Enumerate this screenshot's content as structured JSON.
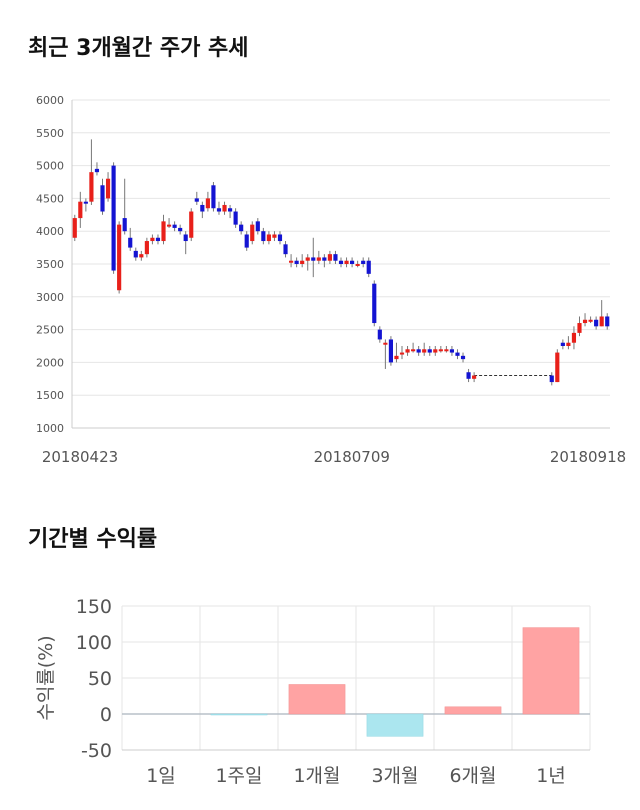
{
  "section1": {
    "title": "최근 3개월간 주가 추세"
  },
  "section2": {
    "title": "기간별 수익률"
  },
  "colors": {
    "up": "#e8201a",
    "down": "#1414d2",
    "gain_bar": "#ffa3a3",
    "loss_bar": "#abe6ef"
  },
  "chart_data": [
    {
      "type": "candlestick",
      "title": "최근 3개월간 주가 추세",
      "ylim": [
        1000,
        6000
      ],
      "yticks": [
        1000,
        1500,
        2000,
        2500,
        3000,
        3500,
        4000,
        4500,
        5000,
        5500,
        6000
      ],
      "xticks": [
        "20180423",
        "20180709",
        "20180918"
      ],
      "grid": true,
      "candles": [
        [
          3900,
          4200,
          4250,
          3850
        ],
        [
          4200,
          4450,
          4600,
          4050
        ],
        [
          4450,
          4420,
          4500,
          4300
        ],
        [
          4450,
          4900,
          5400,
          4400
        ],
        [
          4950,
          4900,
          5050,
          4850
        ],
        [
          4700,
          4300,
          4800,
          4250
        ],
        [
          4500,
          4800,
          4900,
          4450
        ],
        [
          5000,
          3400,
          5050,
          3350
        ],
        [
          3100,
          4100,
          4150,
          3050
        ],
        [
          4200,
          4000,
          4800,
          3950
        ],
        [
          3900,
          3750,
          4050,
          3700
        ],
        [
          3700,
          3600,
          3750,
          3550
        ],
        [
          3600,
          3650,
          3700,
          3550
        ],
        [
          3650,
          3850,
          3900,
          3600
        ],
        [
          3850,
          3900,
          3950,
          3800
        ],
        [
          3900,
          3850,
          3950,
          3800
        ],
        [
          3850,
          4150,
          4250,
          3800
        ],
        [
          4100,
          4100,
          4200,
          4050
        ],
        [
          4100,
          4050,
          4150,
          4000
        ],
        [
          4050,
          4000,
          4100,
          3950
        ],
        [
          3950,
          3850,
          4000,
          3650
        ],
        [
          3900,
          4300,
          4350,
          3850
        ],
        [
          4500,
          4450,
          4600,
          4400
        ],
        [
          4400,
          4300,
          4450,
          4200
        ],
        [
          4350,
          4500,
          4600,
          4300
        ],
        [
          4700,
          4350,
          4750,
          4300
        ],
        [
          4350,
          4300,
          4450,
          4250
        ],
        [
          4300,
          4400,
          4450,
          4250
        ],
        [
          4350,
          4300,
          4400,
          4200
        ],
        [
          4300,
          4100,
          4350,
          4050
        ],
        [
          4100,
          4000,
          4150,
          3950
        ],
        [
          3950,
          3750,
          4000,
          3700
        ],
        [
          3850,
          4100,
          4150,
          3800
        ],
        [
          4150,
          4000,
          4200,
          3950
        ],
        [
          4000,
          3850,
          4050,
          3800
        ],
        [
          3850,
          3950,
          4000,
          3800
        ],
        [
          3900,
          3950,
          4000,
          3850
        ],
        [
          3950,
          3850,
          4000,
          3800
        ],
        [
          3800,
          3650,
          3850,
          3600
        ],
        [
          3550,
          3550,
          3650,
          3450
        ],
        [
          3550,
          3500,
          3600,
          3450
        ],
        [
          3500,
          3550,
          3650,
          3450
        ],
        [
          3550,
          3600,
          3650,
          3400
        ],
        [
          3600,
          3550,
          3900,
          3300
        ],
        [
          3550,
          3600,
          3700,
          3500
        ],
        [
          3600,
          3550,
          3650,
          3450
        ],
        [
          3550,
          3650,
          3700,
          3500
        ],
        [
          3650,
          3550,
          3700,
          3500
        ],
        [
          3550,
          3500,
          3600,
          3450
        ],
        [
          3500,
          3550,
          3600,
          3450
        ],
        [
          3550,
          3500,
          3600,
          3450
        ],
        [
          3500,
          3500,
          3550,
          3450
        ],
        [
          3550,
          3500,
          3600,
          3450
        ],
        [
          3550,
          3350,
          3600,
          3300
        ],
        [
          3200,
          2600,
          3250,
          2550
        ],
        [
          2500,
          2350,
          2550,
          2300
        ],
        [
          2300,
          2300,
          2350,
          1900
        ],
        [
          2350,
          2000,
          2400,
          1950
        ],
        [
          2050,
          2100,
          2300,
          2000
        ],
        [
          2150,
          2150,
          2250,
          2050
        ],
        [
          2150,
          2200,
          2250,
          2100
        ],
        [
          2200,
          2200,
          2300,
          2150
        ],
        [
          2200,
          2150,
          2250,
          2100
        ],
        [
          2150,
          2200,
          2300,
          2100
        ],
        [
          2200,
          2150,
          2250,
          2100
        ],
        [
          2150,
          2200,
          2250,
          2100
        ],
        [
          2200,
          2200,
          2250,
          2150
        ],
        [
          2200,
          2200,
          2250,
          2150
        ],
        [
          2200,
          2150,
          2250,
          2100
        ],
        [
          2150,
          2100,
          2200,
          2050
        ],
        [
          2100,
          2050,
          2150,
          2000
        ],
        [
          1850,
          1750,
          1900,
          1700
        ],
        [
          1750,
          1800,
          1850,
          1700
        ],
        [
          1800,
          1800,
          1800,
          1800
        ],
        [
          1800,
          1800,
          1800,
          1800
        ],
        [
          1800,
          1800,
          1800,
          1800
        ],
        [
          1800,
          1800,
          1800,
          1800
        ],
        [
          1800,
          1800,
          1800,
          1800
        ],
        [
          1800,
          1800,
          1800,
          1800
        ],
        [
          1800,
          1800,
          1800,
          1800
        ],
        [
          1800,
          1800,
          1800,
          1800
        ],
        [
          1800,
          1800,
          1800,
          1800
        ],
        [
          1800,
          1800,
          1800,
          1800
        ],
        [
          1800,
          1800,
          1800,
          1800
        ],
        [
          1800,
          1800,
          1800,
          1800
        ],
        [
          1800,
          1800,
          1800,
          1800
        ],
        [
          1800,
          1700,
          1850,
          1650
        ],
        [
          1700,
          2150,
          2200,
          1700
        ],
        [
          2300,
          2250,
          2350,
          2200
        ],
        [
          2250,
          2300,
          2400,
          2200
        ],
        [
          2300,
          2450,
          2550,
          2200
        ],
        [
          2450,
          2600,
          2700,
          2400
        ],
        [
          2600,
          2650,
          2750,
          2550
        ],
        [
          2650,
          2650,
          2700,
          2600
        ],
        [
          2650,
          2550,
          2700,
          2500
        ],
        [
          2550,
          2700,
          2950,
          2550
        ],
        [
          2700,
          2550,
          2750,
          2500
        ]
      ]
    },
    {
      "type": "bar",
      "title": "기간별 수익률",
      "ylabel": "수익률(%)",
      "categories": [
        "1일",
        "1주일",
        "1개월",
        "3개월",
        "6개월",
        "1년"
      ],
      "values": [
        0,
        -1,
        41,
        -31,
        10,
        120
      ],
      "ylim": [
        -50,
        150
      ],
      "yticks": [
        -50,
        0,
        50,
        100,
        150
      ],
      "grid": true
    }
  ]
}
